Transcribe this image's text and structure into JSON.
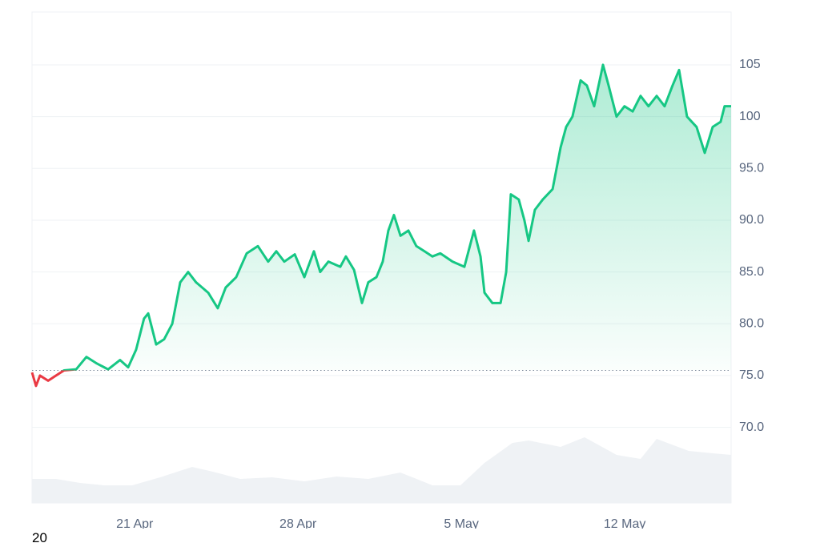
{
  "chart_data": {
    "type": "line",
    "footer_text": "20",
    "x": [
      16.6,
      16.77,
      16.94,
      17.29,
      17.63,
      17.97,
      18.49,
      18.93,
      19.35,
      19.86,
      20.37,
      20.72,
      21.06,
      21.4,
      21.58,
      21.92,
      22.26,
      22.61,
      22.95,
      23.29,
      23.63,
      24.15,
      24.56,
      24.9,
      25.35,
      25.8,
      26.28,
      26.72,
      27.07,
      27.41,
      27.86,
      28.27,
      28.68,
      28.95,
      29.3,
      29.81,
      30.05,
      30.4,
      30.74,
      31.01,
      31.36,
      31.63,
      31.87,
      32.11,
      32.39,
      32.73,
      33.07,
      33.42,
      33.76,
      34.1,
      34.62,
      35.13,
      35.54,
      35.82,
      35.99,
      36.33,
      36.68,
      36.92,
      37.12,
      37.46,
      37.7,
      37.88,
      38.15,
      38.49,
      38.91,
      39.25,
      39.49,
      39.76,
      40.11,
      40.38,
      40.69,
      41.07,
      41.31,
      41.65,
      41.99,
      42.34,
      42.68,
      43.02,
      43.37,
      43.71,
      44.05,
      44.33,
      44.67,
      45.08,
      45.43,
      45.77,
      46.11,
      46.28,
      46.56
    ],
    "series": [
      {
        "color": "#16c784",
        "down_color": "#ea3943",
        "values": [
          75.3,
          74,
          75,
          74.5,
          75,
          75.5,
          75.6,
          76.8,
          76.2,
          75.6,
          76.5,
          75.8,
          77.5,
          80.5,
          81,
          78,
          78.5,
          80,
          84,
          85,
          84,
          83,
          81.5,
          83.5,
          84.5,
          86.8,
          87.5,
          86,
          87,
          86,
          86.7,
          84.5,
          87,
          85,
          86,
          85.5,
          86.5,
          85.2,
          82,
          84,
          84.5,
          86,
          89,
          90.5,
          88.5,
          89,
          87.5,
          87,
          86.5,
          86.8,
          86,
          85.5,
          89,
          86.5,
          83,
          82,
          82,
          85,
          92.5,
          92,
          90,
          88,
          91,
          92,
          93,
          97,
          99,
          100,
          103.5,
          103,
          101,
          105,
          103,
          100,
          101,
          100.5,
          102,
          101,
          102,
          101,
          103,
          104.5,
          100,
          99,
          96.5,
          99,
          99.5,
          101,
          101
        ]
      }
    ],
    "baseline": 75.5,
    "xlim": [
      16.6,
      46.56
    ],
    "xticks": [
      {
        "value": 21,
        "label": "21 Apr"
      },
      {
        "value": 28,
        "label": "28 Apr"
      },
      {
        "value": 35,
        "label": "5 May"
      },
      {
        "value": 42,
        "label": "12 May"
      }
    ],
    "ylim": [
      62.7,
      110.1
    ],
    "yticks": [
      {
        "value": 70,
        "label": "70.0"
      },
      {
        "value": 75,
        "label": "75.0"
      },
      {
        "value": 80,
        "label": "80.0"
      },
      {
        "value": 85,
        "label": "85.0"
      },
      {
        "value": 90,
        "label": "90.0"
      },
      {
        "value": 95,
        "label": "95.0"
      },
      100,
      105
    ],
    "grid": true,
    "volume": {
      "color": "#eff2f5",
      "x": [
        16.6,
        17.63,
        18.66,
        19.69,
        20.89,
        22.09,
        23.46,
        24.49,
        25.52,
        26.89,
        28.27,
        29.64,
        31.01,
        32.39,
        33.76,
        34.96,
        35.99,
        37.19,
        37.88,
        39.25,
        40.28,
        41.65,
        42.68,
        43.37,
        44.74,
        45.77,
        46.56
      ],
      "values": [
        30,
        30,
        25,
        22,
        22,
        32,
        45,
        38,
        30,
        32,
        27,
        33,
        30,
        38,
        22,
        22,
        50,
        75,
        78,
        70,
        82,
        60,
        55,
        80,
        65,
        62,
        60
      ],
      "ylim": [
        0,
        100
      ]
    }
  }
}
